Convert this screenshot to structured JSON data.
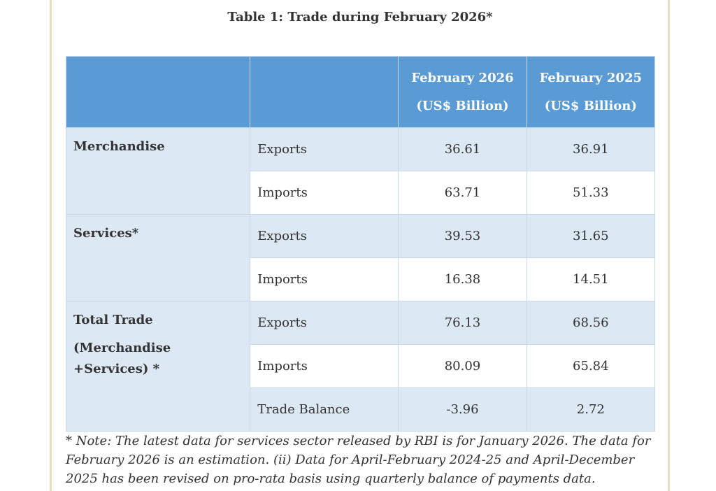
{
  "title": "Table 1: Trade during February 2026*",
  "headers": [
    "",
    "",
    "February 2026",
    "(US$ Billion)",
    "February 2025",
    "(US$ Billion)"
  ],
  "groups": [
    {
      "label": "Merchandise",
      "rows": [
        {
          "type": "Exports",
          "feb2026": "36.61",
          "feb2025": "36.91"
        },
        {
          "type": "Imports",
          "feb2026": "63.71",
          "feb2025": "51.33"
        }
      ]
    },
    {
      "label": "Services*",
      "rows": [
        {
          "type": "Exports",
          "feb2026": "39.53",
          "feb2025": "31.65"
        },
        {
          "type": "Imports",
          "feb2026": "16.38",
          "feb2025": "14.51"
        }
      ]
    },
    {
      "label": "Total Trade",
      "label2": "(Merchandise +Services) *",
      "rows": [
        {
          "type": "Exports",
          "feb2026": "76.13",
          "feb2025": "68.56"
        },
        {
          "type": "Imports",
          "feb2026": "80.09",
          "feb2025": "65.84"
        },
        {
          "type": "Trade Balance",
          "feb2026": "-3.96",
          "feb2025": "2.72"
        }
      ]
    }
  ],
  "note": "* Note: The latest data for services sector released by RBI is for January 2026. The data for February 2026 is an estimation. (ii) Data for April-February 2024-25 and April-December 2025 has been revised on pro-rata basis using quarterly balance of payments data.",
  "colors": {
    "header": "#5b9bd5",
    "row_alt": "#dde8f5",
    "page_border": "#ecdcc0"
  }
}
